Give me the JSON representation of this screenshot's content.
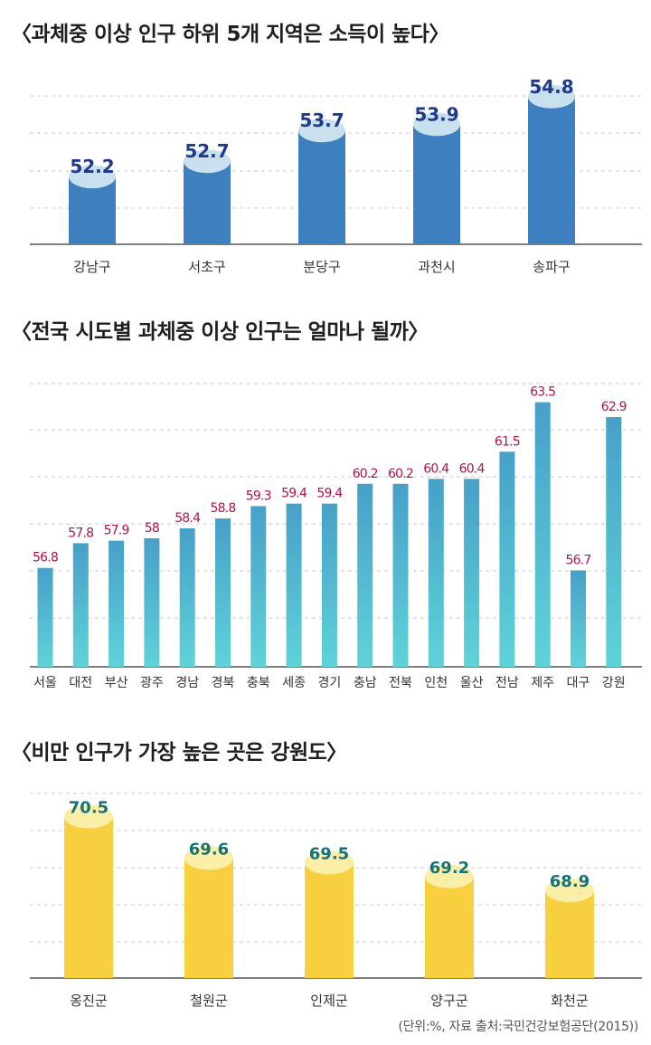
{
  "chart_data": [
    {
      "type": "bar",
      "title": "〈과체중 이상 인구 하위 5개 지역은 소득이 높다〉",
      "categories": [
        "강남구",
        "서초구",
        "분당구",
        "과천시",
        "송파구"
      ],
      "values": [
        52.2,
        52.7,
        53.7,
        53.9,
        54.8
      ],
      "data_labels": [
        "52.2",
        "52.7",
        "53.7",
        "53.9",
        "54.8"
      ],
      "ylim": [
        50.0,
        55.0
      ],
      "grid": true,
      "color": "#3e7fbf",
      "cap_color": "#c9e0ee",
      "label_color": "#1f3a8a"
    },
    {
      "type": "bar",
      "title": "〈전국 시도별 과체중 이상 인구는 얼마나 될까〉",
      "categories": [
        "서울",
        "대전",
        "부산",
        "광주",
        "경남",
        "경북",
        "충북",
        "세종",
        "경기",
        "충남",
        "전북",
        "인천",
        "울산",
        "전남",
        "제주",
        "대구",
        "강원"
      ],
      "values": [
        56.8,
        57.8,
        57.9,
        58,
        58.4,
        58.8,
        59.3,
        59.4,
        59.4,
        60.2,
        60.2,
        60.4,
        60.4,
        61.5,
        63.5,
        56.7,
        62.9
      ],
      "data_labels": [
        "56.8",
        "57.8",
        "57.9",
        "58",
        "58.4",
        "58.8",
        "59.3",
        "59.4",
        "59.4",
        "60.2",
        "60.2",
        "60.4",
        "60.4",
        "61.5",
        "63.5",
        "56.7",
        "62.9"
      ],
      "ylim": [
        52.8,
        64.4
      ],
      "grid": true,
      "color_top": "#47a0c8",
      "color_bottom": "#5fd3d9",
      "label_color": "#b0124f"
    },
    {
      "type": "bar",
      "title": "〈비만 인구가 가장 높은 곳은 강원도〉",
      "categories": [
        "옹진군",
        "철원군",
        "인제군",
        "양구군",
        "화천군"
      ],
      "values": [
        70.5,
        69.6,
        69.5,
        69.2,
        68.9
      ],
      "data_labels": [
        "70.5",
        "69.6",
        "69.5",
        "69.2",
        "68.9"
      ],
      "ylim": [
        67.0,
        71.0
      ],
      "grid": true,
      "color": "#f7cf3f",
      "cap_color": "#fbeea6",
      "label_color": "#16727a"
    }
  ],
  "source": "(단위:%, 자료 출처:국민건강보험공단(2015))"
}
